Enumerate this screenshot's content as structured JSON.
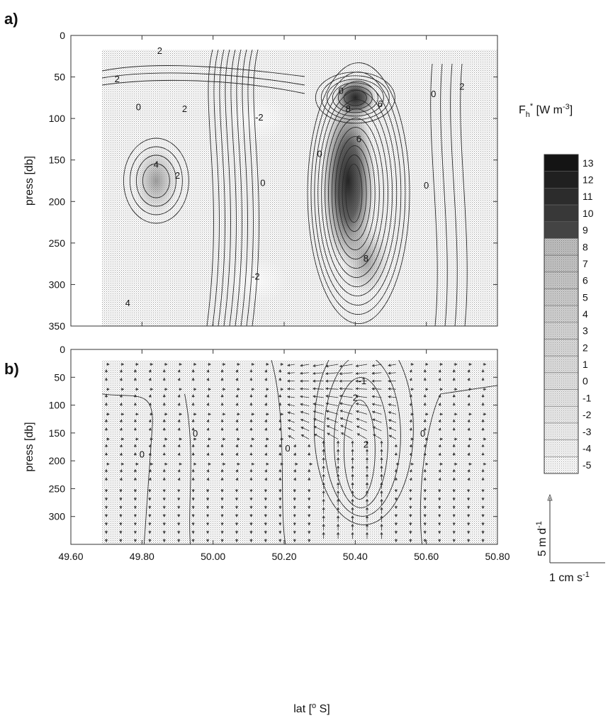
{
  "chart_data": [
    {
      "type": "heatmap",
      "panel_label": "a)",
      "ylabel": "press [db]",
      "xlim": [
        49.6,
        50.8
      ],
      "ylim": [
        0,
        350
      ],
      "y_ticks": [
        "0",
        "50",
        "100",
        "150",
        "200",
        "250",
        "300",
        "350"
      ],
      "colorbar": {
        "title_main": "F",
        "title_sub": "h",
        "title_sup": "*",
        "title_rest": " [W m",
        "title_unit_sup": "-3",
        "title_close": "]",
        "levels": [
          "13",
          "12",
          "11",
          "10",
          "9",
          "8",
          "7",
          "6",
          "5",
          "4",
          "3",
          "2",
          "1",
          "0",
          "-1",
          "-2",
          "-3",
          "-4",
          "-5"
        ]
      },
      "contour_labels": [
        {
          "text": "2",
          "lat": 49.85,
          "press": 18
        },
        {
          "text": "2",
          "lat": 49.73,
          "press": 52
        },
        {
          "text": "0",
          "lat": 49.79,
          "press": 86
        },
        {
          "text": "2",
          "lat": 49.92,
          "press": 88
        },
        {
          "text": "-2",
          "lat": 50.13,
          "press": 98
        },
        {
          "text": "0",
          "lat": 50.36,
          "press": 66
        },
        {
          "text": "8",
          "lat": 50.38,
          "press": 88
        },
        {
          "text": "6",
          "lat": 50.47,
          "press": 82
        },
        {
          "text": "0",
          "lat": 50.62,
          "press": 70
        },
        {
          "text": "2",
          "lat": 50.7,
          "press": 61
        },
        {
          "text": "6",
          "lat": 50.41,
          "press": 124
        },
        {
          "text": "0",
          "lat": 50.3,
          "press": 142
        },
        {
          "text": "4",
          "lat": 49.84,
          "press": 155
        },
        {
          "text": "2",
          "lat": 49.9,
          "press": 168
        },
        {
          "text": "0",
          "lat": 50.14,
          "press": 177
        },
        {
          "text": "0",
          "lat": 50.6,
          "press": 180
        },
        {
          "text": "-2",
          "lat": 50.12,
          "press": 290
        },
        {
          "text": "8",
          "lat": 50.43,
          "press": 268
        },
        {
          "text": "4",
          "lat": 49.76,
          "press": 322
        }
      ],
      "field_peaks": [
        {
          "lat": 50.38,
          "press": 175,
          "value": 13
        },
        {
          "lat": 50.4,
          "press": 75,
          "value": 9
        },
        {
          "lat": 50.43,
          "press": 270,
          "value": 8
        },
        {
          "lat": 49.84,
          "press": 175,
          "value": 4
        },
        {
          "lat": 50.12,
          "press": 100,
          "value": -2
        },
        {
          "lat": 50.12,
          "press": 295,
          "value": -2
        }
      ]
    },
    {
      "type": "vector-field",
      "panel_label": "b)",
      "xlabel": "lat [",
      "xlabel_sup": "o",
      "xlabel_end": " S]",
      "ylabel": "press [db]",
      "xlim": [
        49.6,
        50.8
      ],
      "ylim": [
        0,
        350
      ],
      "x_ticks": [
        "49.60",
        "49.80",
        "50.00",
        "50.20",
        "50.40",
        "50.60",
        "50.80"
      ],
      "y_ticks": [
        "0",
        "50",
        "100",
        "150",
        "200",
        "250",
        "300"
      ],
      "vector_scale": {
        "vertical_value": "5 m d",
        "vertical_sup": "-1",
        "horizontal_value": "1 cm s",
        "horizontal_sup": "-1"
      },
      "contour_labels": [
        {
          "text": "0",
          "lat": 49.95,
          "press": 150
        },
        {
          "text": "0",
          "lat": 49.8,
          "press": 188
        },
        {
          "text": "0",
          "lat": 50.21,
          "press": 177
        },
        {
          "text": "-1",
          "lat": 50.42,
          "press": 56
        },
        {
          "text": "2",
          "lat": 50.4,
          "press": 86
        },
        {
          "text": "2",
          "lat": 50.43,
          "press": 170
        },
        {
          "text": "0",
          "lat": 50.59,
          "press": 150
        }
      ]
    }
  ]
}
